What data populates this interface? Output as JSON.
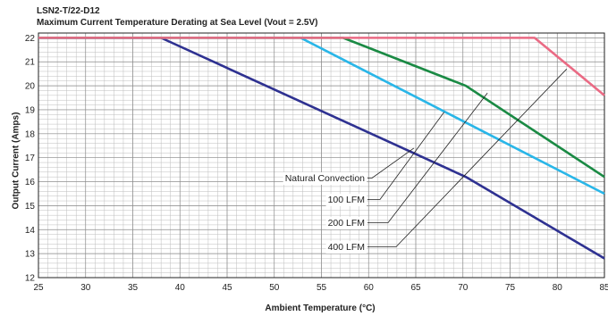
{
  "chart_data": {
    "type": "line",
    "title": "LSN2-T/22-D12",
    "subtitle": "Maximum Current Temperature Derating at Sea Level  (Vout = 2.5V)",
    "xlabel": "Ambient Temperature (°C)",
    "ylabel": "Output Current (Amps)",
    "xlim": [
      25,
      85
    ],
    "ylim": [
      12,
      22.2
    ],
    "xticks": [
      25,
      30,
      35,
      40,
      45,
      50,
      55,
      60,
      65,
      70,
      75,
      80,
      85
    ],
    "yticks": [
      12,
      13,
      14,
      15,
      16,
      17,
      18,
      19,
      20,
      21,
      22
    ],
    "grid": true,
    "series": [
      {
        "name": "Natural Convection",
        "color": "#2e3191",
        "x": [
          25,
          38,
          70.3,
          85
        ],
        "y": [
          22,
          22,
          16.2,
          12.8
        ]
      },
      {
        "name": "100 LFM",
        "color": "#29b6e8",
        "x": [
          25,
          52.8,
          85
        ],
        "y": [
          22,
          22,
          15.5
        ]
      },
      {
        "name": "200 LFM",
        "color": "#1a8a44",
        "x": [
          25,
          57.3,
          70.3,
          85
        ],
        "y": [
          22,
          22,
          20,
          16.2
        ]
      },
      {
        "name": "400 LFM",
        "color": "#ea6a84",
        "x": [
          25,
          77.6,
          85
        ],
        "y": [
          22,
          22,
          19.6
        ]
      }
    ],
    "annotations": [
      {
        "text": "Natural Convection",
        "target": {
          "x": 64.8,
          "y": 17.4
        }
      },
      {
        "text": "100 LFM",
        "target": {
          "x": 68.0,
          "y": 18.9
        }
      },
      {
        "text": "200 LFM",
        "target": {
          "x": 72.6,
          "y": 19.7
        }
      },
      {
        "text": "400 LFM",
        "target": {
          "x": 81.0,
          "y": 20.7
        }
      }
    ]
  }
}
